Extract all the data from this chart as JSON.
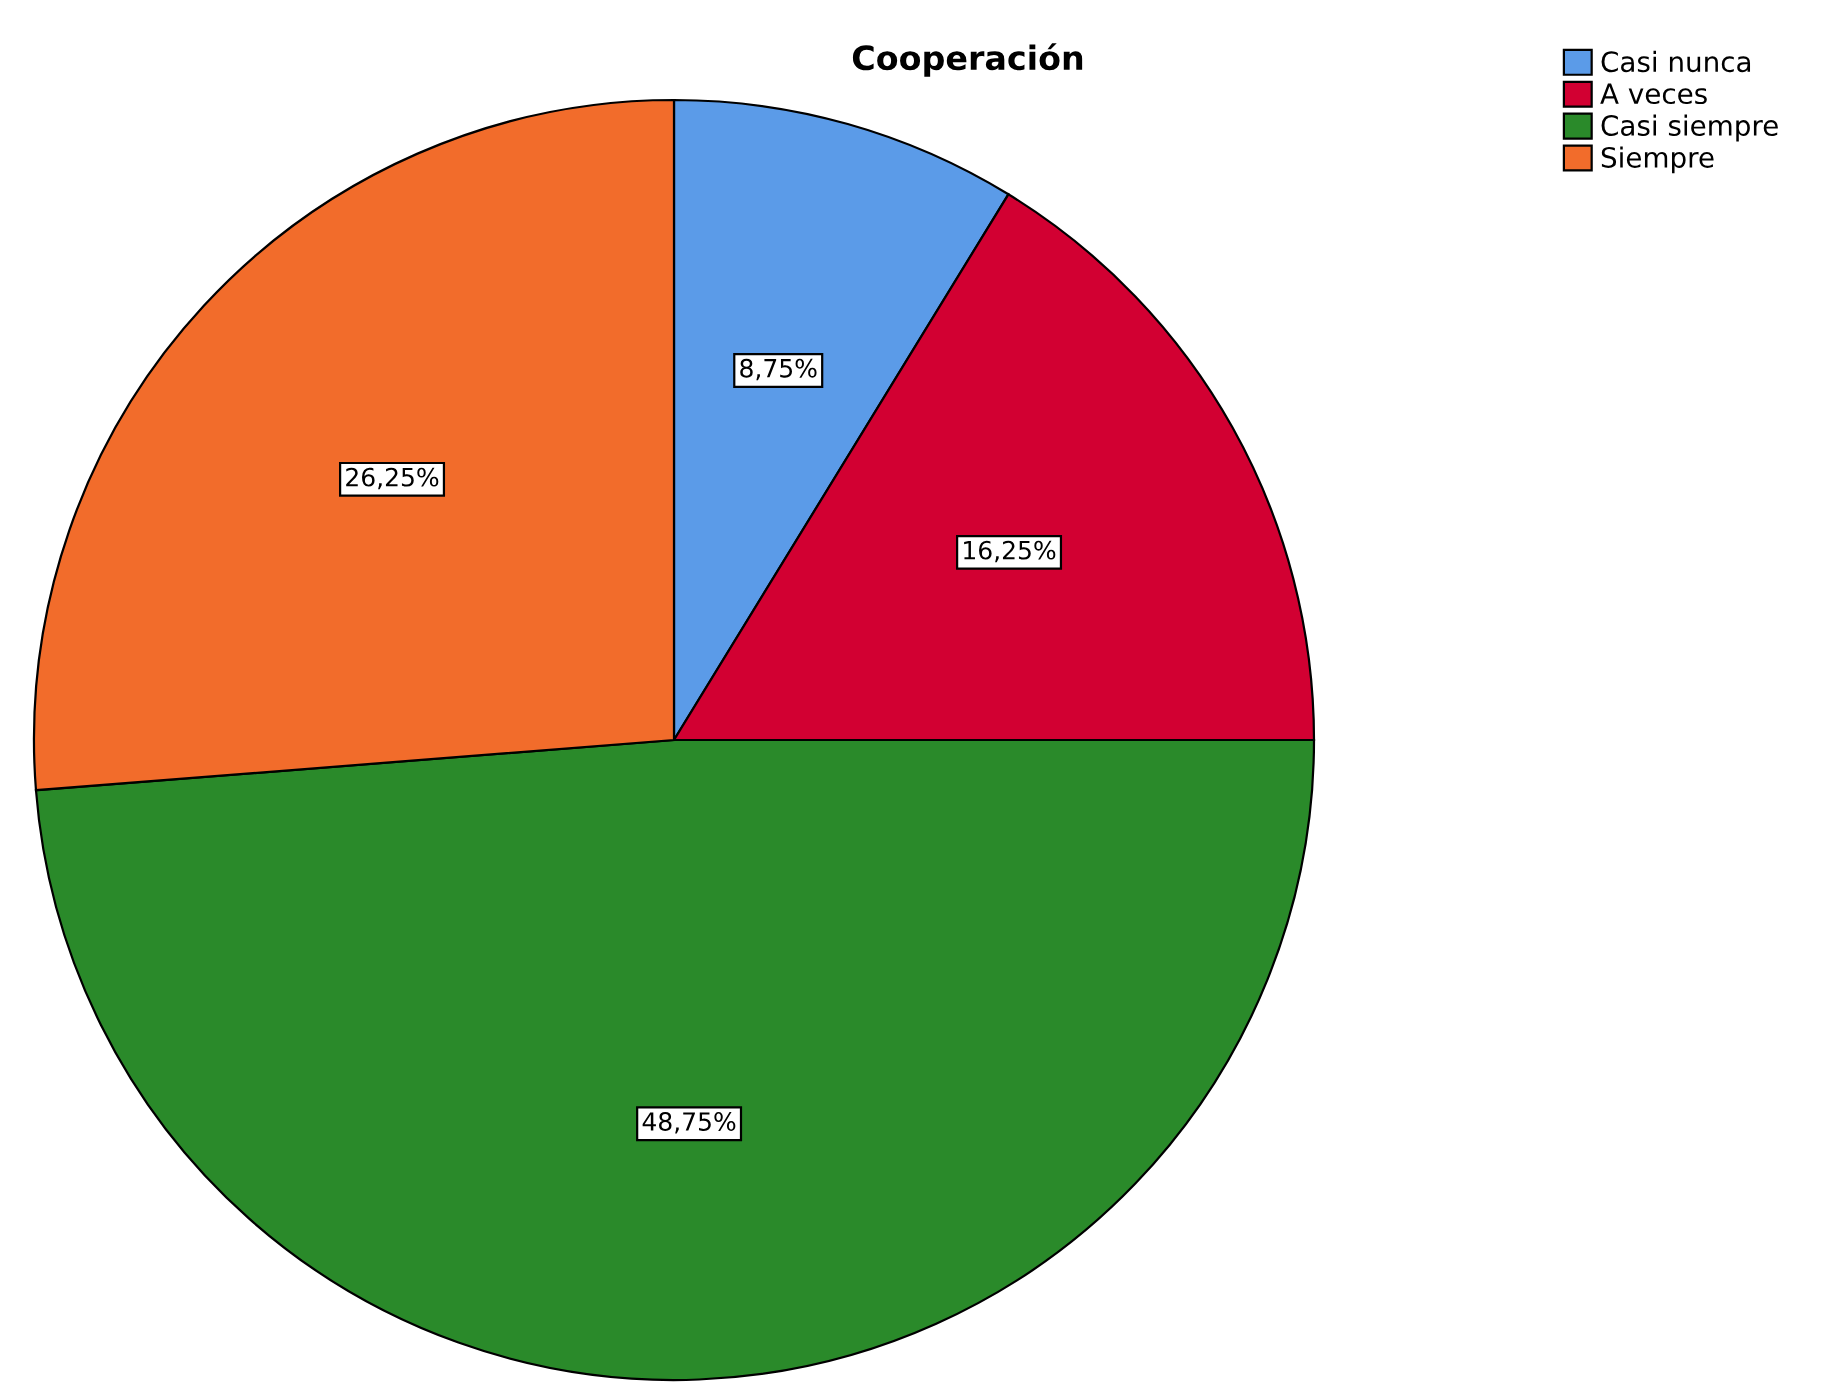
{
  "chart_data": {
    "type": "pie",
    "title": "Cooperación",
    "categories": [
      "Casi nunca",
      "A veces",
      "Casi siempre",
      "Siempre"
    ],
    "values": [
      8.75,
      16.25,
      48.75,
      26.25
    ],
    "colors": [
      "#5b9be8",
      "#d20032",
      "#2a8a2a",
      "#f26c2b"
    ],
    "value_labels": [
      "8,75%",
      "16,25%",
      "48,75%",
      "26,25%"
    ],
    "legend": "top right"
  }
}
